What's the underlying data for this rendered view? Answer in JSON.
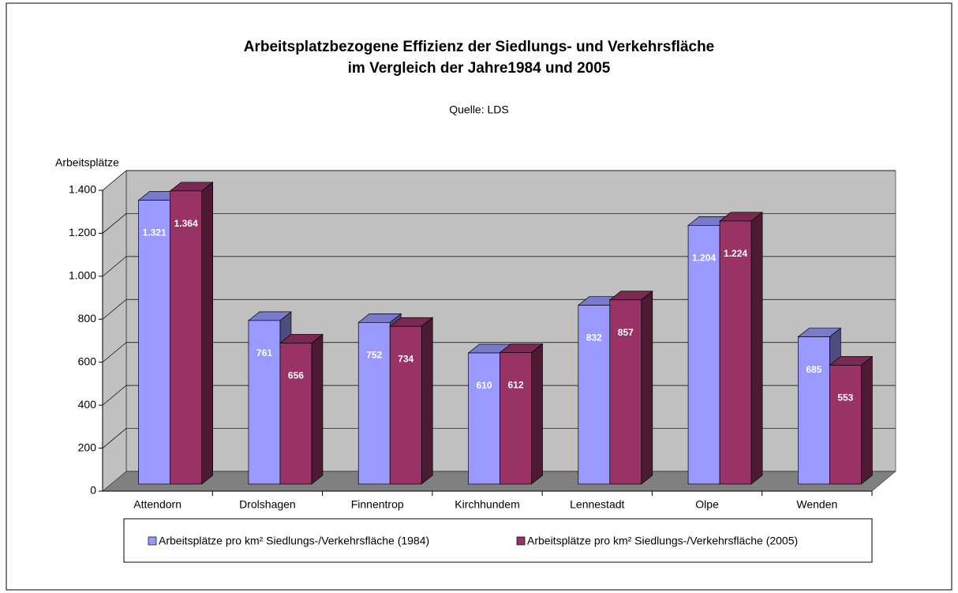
{
  "chart_data": {
    "type": "bar3d",
    "title": [
      "Arbeitsplatzbezogene Effizienz der Siedlungs- und Verkehrsfläche",
      "im Vergleich der Jahre1984 und 2005"
    ],
    "subtitle": "Quelle: LDS",
    "y_label": "Arbeitsplätze",
    "categories": [
      "Attendorn",
      "Drolshagen",
      "Finnentrop",
      "Kirchhundem",
      "Lennestadt",
      "Olpe",
      "Wenden"
    ],
    "series": [
      {
        "name": "Arbeitsplätze pro km² Siedlungs-/Verkehrsfläche (1984)",
        "color": "#9999ff",
        "values": [
          1321,
          761,
          752,
          610,
          832,
          1204,
          685
        ],
        "value_labels": [
          "1.321",
          "761",
          "752",
          "610",
          "832",
          "1.204",
          "685"
        ]
      },
      {
        "name": "Arbeitsplätze pro km² Siedlungs-/Verkehrsfläche (2005)",
        "color": "#993366",
        "values": [
          1364,
          656,
          734,
          612,
          857,
          1224,
          553
        ],
        "value_labels": [
          "1.364",
          "656",
          "734",
          "612",
          "857",
          "1.224",
          "553"
        ]
      }
    ],
    "ylim": [
      0,
      1400
    ],
    "yticks": [
      0,
      200,
      400,
      600,
      800,
      {
        "value": 1000,
        "label": "1.000"
      },
      {
        "value": 1200,
        "label": "1.200"
      },
      {
        "value": 1400,
        "label": "1.400"
      }
    ],
    "grid": true
  }
}
